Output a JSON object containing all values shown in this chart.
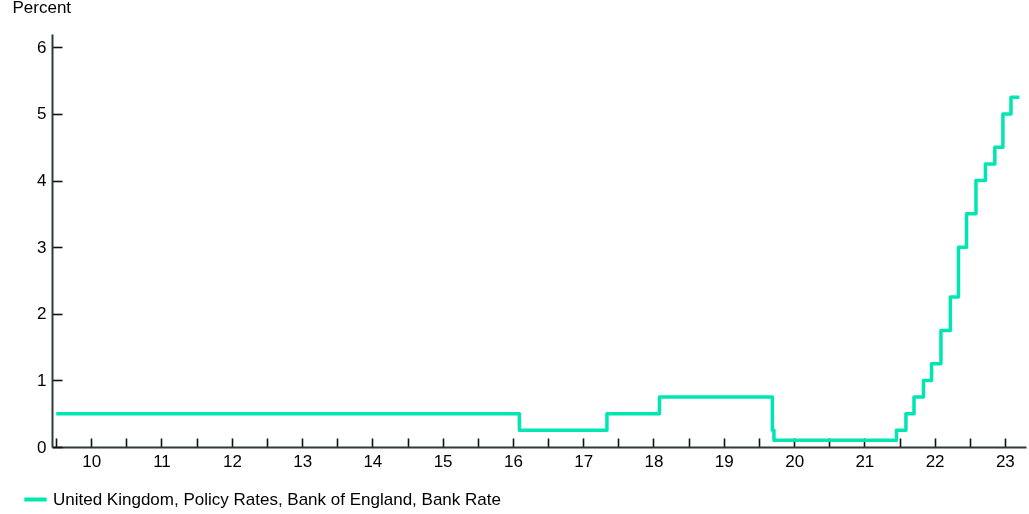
{
  "chart_data": {
    "type": "step",
    "ylabel": "Percent",
    "x": [
      "2010-01-01",
      "2016-08-04",
      "2017-11-02",
      "2018-08-02",
      "2020-03-11",
      "2020-03-19",
      "2021-12-16",
      "2022-02-03",
      "2022-03-17",
      "2022-05-05",
      "2022-06-16",
      "2022-08-04",
      "2022-09-22",
      "2022-11-03",
      "2022-12-15",
      "2023-02-02",
      "2023-03-23",
      "2023-05-11",
      "2023-06-22",
      "2023-08-03",
      "2023-09-15"
    ],
    "series": [
      {
        "name": "United Kingdom, Policy Rates, Bank of England, Bank Rate",
        "color": "#00e6b2",
        "values": [
          0.5,
          0.25,
          0.5,
          0.75,
          0.25,
          0.1,
          0.25,
          0.5,
          0.75,
          1.0,
          1.25,
          1.75,
          2.25,
          3.0,
          3.5,
          4.0,
          4.25,
          4.5,
          5.0,
          5.25,
          5.25
        ]
      }
    ],
    "xlim": [
      "2009-12-10",
      "2023-10-20"
    ],
    "xticks": [
      {
        "value": "2010-01-01",
        "label": null
      },
      {
        "value": "2010-07-02",
        "label": "10"
      },
      {
        "value": "2011-01-01",
        "label": null
      },
      {
        "value": "2011-07-02",
        "label": "11"
      },
      {
        "value": "2012-01-01",
        "label": null
      },
      {
        "value": "2012-07-02",
        "label": "12"
      },
      {
        "value": "2013-01-01",
        "label": null
      },
      {
        "value": "2013-07-02",
        "label": "13"
      },
      {
        "value": "2014-01-01",
        "label": null
      },
      {
        "value": "2014-07-02",
        "label": "14"
      },
      {
        "value": "2015-01-01",
        "label": null
      },
      {
        "value": "2015-07-02",
        "label": "15"
      },
      {
        "value": "2016-01-01",
        "label": null
      },
      {
        "value": "2016-07-02",
        "label": "16"
      },
      {
        "value": "2017-01-01",
        "label": null
      },
      {
        "value": "2017-07-02",
        "label": "17"
      },
      {
        "value": "2018-01-01",
        "label": null
      },
      {
        "value": "2018-07-02",
        "label": "18"
      },
      {
        "value": "2019-01-01",
        "label": null
      },
      {
        "value": "2019-07-02",
        "label": "19"
      },
      {
        "value": "2020-01-01",
        "label": null
      },
      {
        "value": "2020-07-02",
        "label": "20"
      },
      {
        "value": "2021-01-01",
        "label": null
      },
      {
        "value": "2021-07-02",
        "label": "21"
      },
      {
        "value": "2022-01-01",
        "label": null
      },
      {
        "value": "2022-07-02",
        "label": "22"
      },
      {
        "value": "2023-01-01",
        "label": null
      },
      {
        "value": "2023-07-02",
        "label": "23"
      }
    ],
    "ylim": [
      0,
      6.2
    ],
    "yticks": [
      0,
      1,
      2,
      3,
      4,
      5,
      6
    ],
    "legend": "bottom left"
  }
}
